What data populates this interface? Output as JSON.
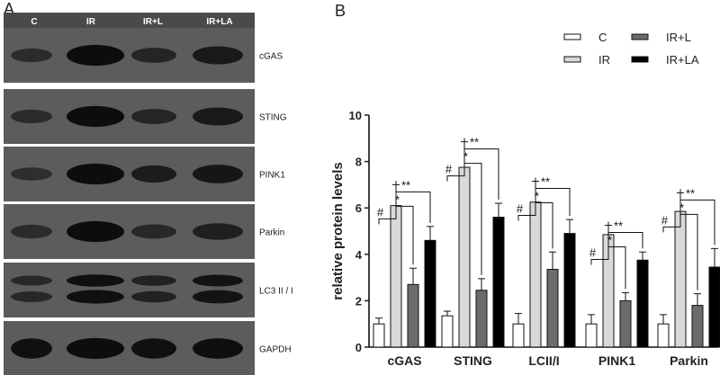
{
  "panel_a": {
    "letter": "A",
    "lanes": [
      "C",
      "IR",
      "IR+L",
      "IR+LA"
    ],
    "blots": [
      {
        "label": "cGAS",
        "intensity": [
          0.45,
          0.95,
          0.55,
          0.75
        ]
      },
      {
        "label": "STING",
        "intensity": [
          0.45,
          0.95,
          0.55,
          0.75
        ]
      },
      {
        "label": "PINK1",
        "intensity": [
          0.4,
          0.95,
          0.7,
          0.8
        ]
      },
      {
        "label": "Parkin",
        "intensity": [
          0.45,
          0.95,
          0.5,
          0.65
        ]
      },
      {
        "label": "LC3 II / I",
        "intensity": [
          0.5,
          0.9,
          0.6,
          0.85
        ]
      },
      {
        "label": "GAPDH",
        "intensity": [
          0.9,
          0.95,
          0.9,
          0.92
        ]
      }
    ]
  },
  "chart_data": {
    "panel": "B",
    "type": "bar",
    "categories": [
      "cGAS",
      "STING",
      "LCII/I",
      "PINK1",
      "Parkin"
    ],
    "series": [
      {
        "name": "C",
        "color": "#ffffff",
        "values": [
          1.0,
          1.35,
          1.0,
          1.0,
          1.0
        ],
        "errors": [
          0.25,
          0.2,
          0.45,
          0.4,
          0.4
        ]
      },
      {
        "name": "IR",
        "color": "#d9d9d9",
        "values": [
          6.1,
          7.75,
          6.25,
          4.85,
          5.85
        ],
        "errors": [
          0.9,
          1.1,
          0.9,
          0.4,
          0.8
        ]
      },
      {
        "name": "IR+L",
        "color": "#6b6b6b",
        "values": [
          2.7,
          2.45,
          3.35,
          2.0,
          1.8
        ],
        "errors": [
          0.7,
          0.5,
          0.75,
          0.35,
          0.5
        ]
      },
      {
        "name": "IR+LA",
        "color": "#000000",
        "values": [
          4.6,
          5.6,
          4.9,
          3.75,
          3.45
        ],
        "errors": [
          0.6,
          0.6,
          0.6,
          0.35,
          0.8
        ]
      }
    ],
    "ylabel": "relative protein levels",
    "xlabel": "",
    "ylim": [
      0,
      10
    ],
    "yticks": [
      0,
      2,
      4,
      6,
      8,
      10
    ],
    "legend_position": "top-right",
    "significance": [
      {
        "category": "cGAS",
        "marks": [
          "#",
          "*",
          "**"
        ]
      },
      {
        "category": "STING",
        "marks": [
          "#",
          "*",
          "**"
        ]
      },
      {
        "category": "LCII/I",
        "marks": [
          "#",
          "*",
          "**"
        ]
      },
      {
        "category": "PINK1",
        "marks": [
          "#",
          "*",
          "**"
        ]
      },
      {
        "category": "Parkin",
        "marks": [
          "#",
          "*",
          "**"
        ]
      }
    ]
  }
}
